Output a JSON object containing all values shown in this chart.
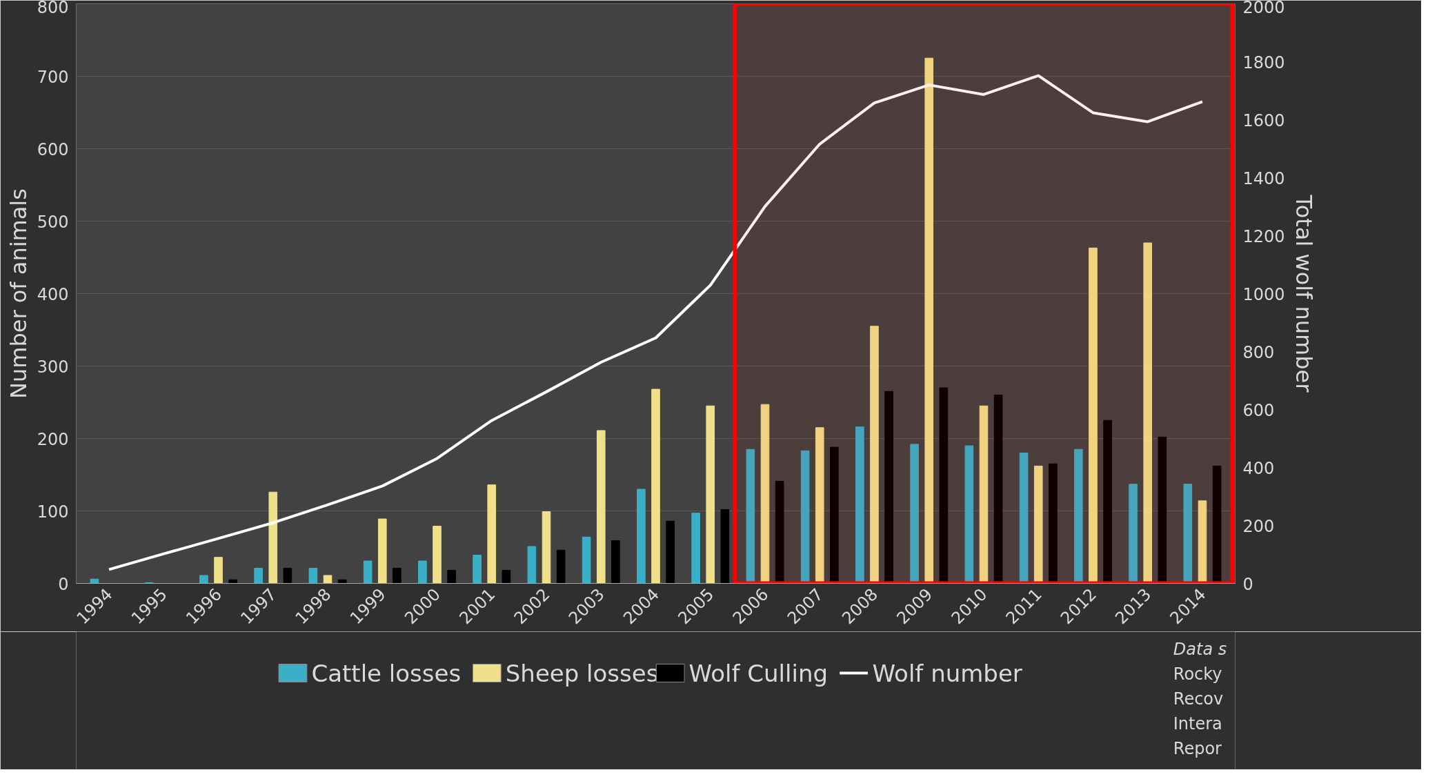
{
  "chart_data": {
    "type": "bar",
    "categories": [
      "1994",
      "1995",
      "1996",
      "1997",
      "1998",
      "1999",
      "2000",
      "2001",
      "2002",
      "2003",
      "2004",
      "2005",
      "2006",
      "2007",
      "2008",
      "2009",
      "2010",
      "2011",
      "2012",
      "2013",
      "2014"
    ],
    "ylabel": "Number of animals",
    "y2label": "Total wolf number",
    "ylim": [
      0,
      800
    ],
    "yticks": [
      0,
      100,
      200,
      300,
      400,
      500,
      600,
      700,
      800
    ],
    "y2lim": [
      0,
      2000
    ],
    "y2ticks": [
      0,
      200,
      400,
      600,
      800,
      1000,
      1200,
      1400,
      1600,
      1800,
      2000
    ],
    "grid": "y",
    "legend": "bottom",
    "series": [
      {
        "name": "Cattle losses",
        "color": "#3ab0c8",
        "values": [
          6,
          1,
          11,
          21,
          21,
          31,
          31,
          39,
          51,
          64,
          130,
          97,
          185,
          183,
          216,
          192,
          190,
          180,
          185,
          137,
          137
        ]
      },
      {
        "name": "Sheep losses",
        "color": "#f0e08a",
        "values": [
          0,
          0,
          36,
          126,
          11,
          89,
          79,
          136,
          99,
          211,
          268,
          245,
          247,
          215,
          355,
          725,
          245,
          162,
          463,
          470,
          114
        ]
      },
      {
        "name": "Wolf Culling",
        "color": "#000000",
        "values": [
          0,
          0,
          5,
          21,
          5,
          21,
          18,
          18,
          46,
          59,
          86,
          102,
          141,
          188,
          265,
          270,
          260,
          165,
          225,
          202,
          162
        ]
      },
      {
        "name": "Wolf number",
        "type": "line",
        "axis": "y2",
        "color": "#ffffff",
        "values": [
          48,
          102,
          155,
          209,
          271,
          336,
          431,
          562,
          661,
          763,
          847,
          1029,
          1301,
          1516,
          1658,
          1720,
          1687,
          1752,
          1624,
          1593,
          1662
        ]
      }
    ],
    "bands": [
      {
        "axis": "x",
        "from": "2006",
        "to": "2014",
        "color": "#ff0000"
      }
    ],
    "annotations": [
      "Data s",
      "Rocky",
      "Recov",
      "Intera",
      "Repor"
    ]
  }
}
